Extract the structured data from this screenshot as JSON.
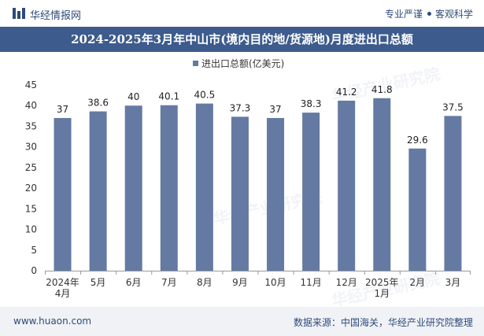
{
  "header": {
    "site_name": "华经情报网",
    "tagline_left": "专业严谨",
    "tagline_right": "客观科学"
  },
  "chart_data": {
    "type": "bar",
    "title": "2024-2025年3月年中山市(境内目的地/货源地)月度进出口总额",
    "legend": [
      "进出口总额(亿美元)"
    ],
    "legend_position": "top-center",
    "categories": [
      [
        "2024年",
        "4月"
      ],
      [
        "5月"
      ],
      [
        "6月"
      ],
      [
        "7月"
      ],
      [
        "8月"
      ],
      [
        "9月"
      ],
      [
        "10月"
      ],
      [
        "11月"
      ],
      [
        "12月"
      ],
      [
        "2025年",
        "1月"
      ],
      [
        "2月"
      ],
      [
        "3月"
      ]
    ],
    "series": [
      {
        "name": "进出口总额(亿美元)",
        "values": [
          37,
          38.6,
          40,
          40.1,
          40.5,
          37.3,
          37,
          38.3,
          41.2,
          41.8,
          29.6,
          37.5
        ],
        "labels": [
          "37",
          "38.6",
          "40",
          "40.1",
          "40.5",
          "37.3",
          "37",
          "38.3",
          "41.2",
          "41.8",
          "29.6",
          "37.5"
        ]
      }
    ],
    "ylim": [
      0,
      45
    ],
    "yticks": [
      0,
      5,
      10,
      15,
      20,
      25,
      30,
      35,
      40,
      45
    ],
    "grid": false,
    "xlabel": "",
    "ylabel": ""
  },
  "watermark": "华经产业研究院",
  "footer": {
    "url": "www.huaon.com",
    "source": "数据来源：中国海关，华经产业研究院整理"
  },
  "colors": {
    "bar": "#647aa3",
    "title_bg": "#3d5b8c",
    "brand": "#2e4a7a"
  }
}
